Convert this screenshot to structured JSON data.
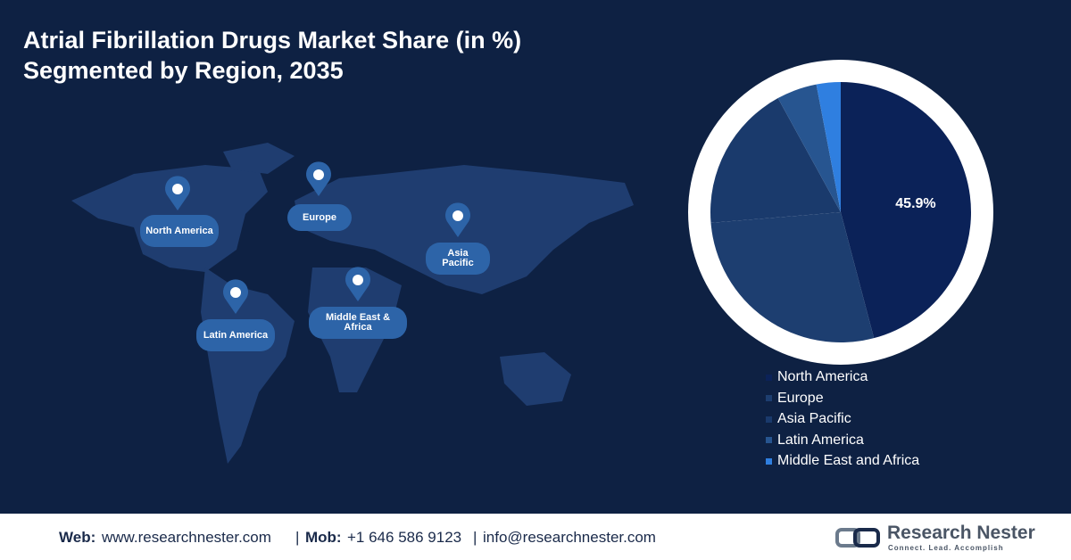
{
  "chart_data": {
    "type": "pie",
    "title": "Atrial Fibrillation Drugs Market Share (in %)",
    "subtitle": "Segmented by Region, 2035",
    "categories": [
      "North America",
      "Europe",
      "Asia Pacific",
      "Latin America",
      "Middle East and Africa"
    ],
    "values": [
      45.9,
      27.8,
      18.3,
      5.0,
      3.0
    ],
    "value_labels": [
      "45.9%",
      null,
      null,
      null,
      null
    ],
    "colors": [
      "#0b2258",
      "#1d3e70",
      "#1a3a6c",
      "#275590",
      "#2f7fe0"
    ]
  },
  "map_labels": [
    "North America",
    "Europe",
    "Asia Pacific",
    "Latin America",
    "Middle East & Africa"
  ],
  "footer": {
    "web_label": "Web:",
    "web": "www.researchnester.com",
    "separator": "|",
    "mob_label": "Mob:",
    "mob": "+1 646 586 9123",
    "email": "info@researchnester.com"
  },
  "logo": {
    "name": "Research Nester",
    "tagline": "Connect. Lead. Accomplish"
  }
}
